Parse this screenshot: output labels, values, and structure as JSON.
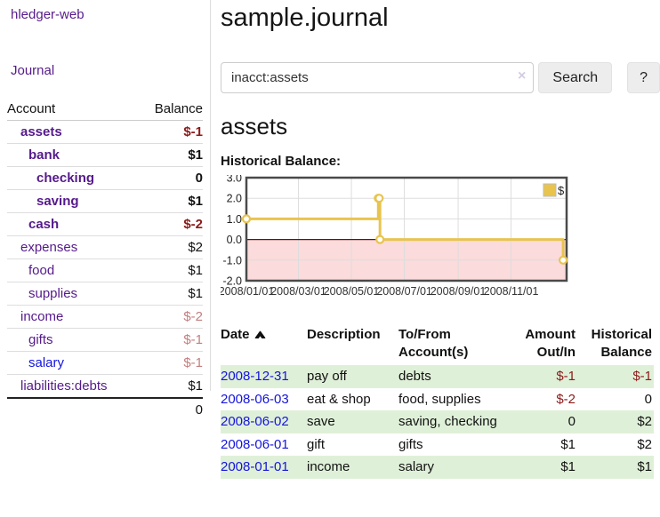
{
  "colors": {
    "purple_link": "#551a8b",
    "blue_link": "#1414dd",
    "negative_strong": "#8b1a1a",
    "negative_muted": "#c47e7e",
    "row_stripe_green": "#dff0d8",
    "chart_line": "#e8c44f",
    "chart_negative_area": "#fbdbdb",
    "chart_zero_line": "#8b0000",
    "chart_grid": "#dddddd",
    "chart_border": "#4a4a4a"
  },
  "sidebar": {
    "brand": "hledger-web",
    "journal_label": "Journal",
    "accounts": {
      "header_account": "Account",
      "header_balance": "Balance",
      "rows": [
        {
          "account": "assets",
          "balance": "$-1",
          "depth": 1,
          "bold": true,
          "neg": "strong",
          "blue": false
        },
        {
          "account": "bank",
          "balance": "$1",
          "depth": 2,
          "bold": true,
          "neg": "",
          "blue": false
        },
        {
          "account": "checking",
          "balance": "0",
          "depth": 3,
          "bold": true,
          "neg": "",
          "blue": false
        },
        {
          "account": "saving",
          "balance": "$1",
          "depth": 3,
          "bold": true,
          "neg": "",
          "blue": false
        },
        {
          "account": "cash",
          "balance": "$-2",
          "depth": 2,
          "bold": true,
          "neg": "strong",
          "blue": false
        },
        {
          "account": "expenses",
          "balance": "$2",
          "depth": 1,
          "bold": false,
          "neg": "",
          "blue": false
        },
        {
          "account": "food",
          "balance": "$1",
          "depth": 2,
          "bold": false,
          "neg": "",
          "blue": false
        },
        {
          "account": "supplies",
          "balance": "$1",
          "depth": 2,
          "bold": false,
          "neg": "",
          "blue": false
        },
        {
          "account": "income",
          "balance": "$-2",
          "depth": 1,
          "bold": false,
          "neg": "muted",
          "blue": false
        },
        {
          "account": "gifts",
          "balance": "$-1",
          "depth": 2,
          "bold": false,
          "neg": "muted",
          "blue": false
        },
        {
          "account": "salary",
          "balance": "$-1",
          "depth": 2,
          "bold": false,
          "neg": "muted",
          "blue": true
        },
        {
          "account": "liabilities:debts",
          "balance": "$1",
          "depth": 1,
          "bold": false,
          "neg": "",
          "blue": false
        }
      ],
      "total": "0"
    }
  },
  "main": {
    "title": "sample.journal",
    "search": {
      "value": "inacct:assets",
      "clear_icon": "×",
      "button_label": "Search",
      "help_label": "?"
    },
    "account_heading": "assets"
  },
  "chart_data": {
    "type": "line",
    "title": "Historical Balance:",
    "legend": "$",
    "ylim": [
      -2,
      3
    ],
    "y_ticks": [
      "3.0",
      "2.0",
      "1.0",
      "0.0",
      "-1.0",
      "-2.0"
    ],
    "y_tick_values": [
      3,
      2,
      1,
      0,
      -1,
      -2
    ],
    "x_ticks": [
      "2008/01/01",
      "2008/03/01",
      "2008/05/01",
      "2008/07/01",
      "2008/09/01",
      "2008/11/01"
    ],
    "x_range": [
      "2008/01/01",
      "2009/01/04"
    ],
    "grid": true,
    "legend_position": "top-right",
    "series": [
      {
        "name": "$",
        "style": "step-after",
        "points": [
          [
            "2008-01-01",
            1
          ],
          [
            "2008-06-01",
            2
          ],
          [
            "2008-06-02",
            2
          ],
          [
            "2008-06-03",
            0
          ],
          [
            "2008-12-31",
            -1
          ]
        ]
      }
    ]
  },
  "register": {
    "headers": [
      {
        "line1": "Date",
        "line2": "",
        "sort": "asc",
        "align": "left"
      },
      {
        "line1": "Description",
        "line2": "",
        "sort": "",
        "align": "left"
      },
      {
        "line1": "To/From",
        "line2": "Account(s)",
        "sort": "",
        "align": "left"
      },
      {
        "line1": "Amount",
        "line2": "Out/In",
        "sort": "",
        "align": "right"
      },
      {
        "line1": "Historical",
        "line2": "Balance",
        "sort": "",
        "align": "right"
      }
    ],
    "rows": [
      {
        "date": "2008-12-31",
        "description": "pay off",
        "accounts": "debts",
        "amount": "$-1",
        "amount_neg": true,
        "balance": "$-1",
        "balance_neg": true
      },
      {
        "date": "2008-06-03",
        "description": "eat & shop",
        "accounts": "food, supplies",
        "amount": "$-2",
        "amount_neg": true,
        "balance": "0",
        "balance_neg": false
      },
      {
        "date": "2008-06-02",
        "description": "save",
        "accounts": "saving, checking",
        "amount": "0",
        "amount_neg": false,
        "balance": "$2",
        "balance_neg": false
      },
      {
        "date": "2008-06-01",
        "description": "gift",
        "accounts": "gifts",
        "amount": "$1",
        "amount_neg": false,
        "balance": "$2",
        "balance_neg": false
      },
      {
        "date": "2008-01-01",
        "description": "income",
        "accounts": "salary",
        "amount": "$1",
        "amount_neg": false,
        "balance": "$1",
        "balance_neg": false
      }
    ]
  }
}
